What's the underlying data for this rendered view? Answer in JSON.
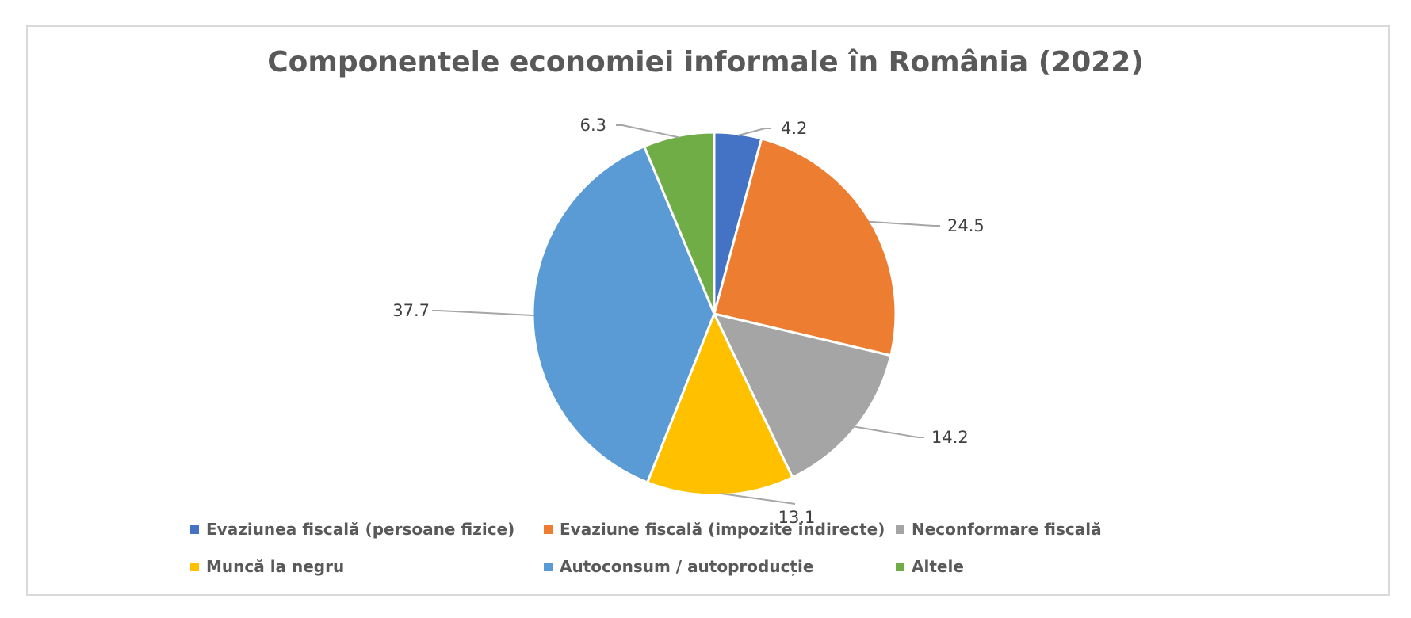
{
  "chart_data": {
    "type": "pie",
    "title": "Componentele economiei informale în România (2022)",
    "legend_position": "bottom",
    "slices": [
      {
        "name": "Evaziunea fiscală (persoane fizice)",
        "label": "4.2",
        "value": 4.2,
        "color": "#4472C4"
      },
      {
        "name": "Evaziune fiscală (impozite indirecte)",
        "label": "24.5",
        "value": 24.5,
        "color": "#ED7D31"
      },
      {
        "name": "Neconformare fiscală",
        "label": "14.2",
        "value": 14.2,
        "color": "#A5A5A5"
      },
      {
        "name": "Muncă la negru",
        "label": "13.1",
        "value": 13.1,
        "color": "#FFC000"
      },
      {
        "name": "Autoconsum / autoproducție",
        "label": "37.7",
        "value": 37.7,
        "color": "#5B9BD5"
      },
      {
        "name": "Altele",
        "label": "6.3",
        "value": 6.3,
        "color": "#70AD47"
      }
    ]
  }
}
